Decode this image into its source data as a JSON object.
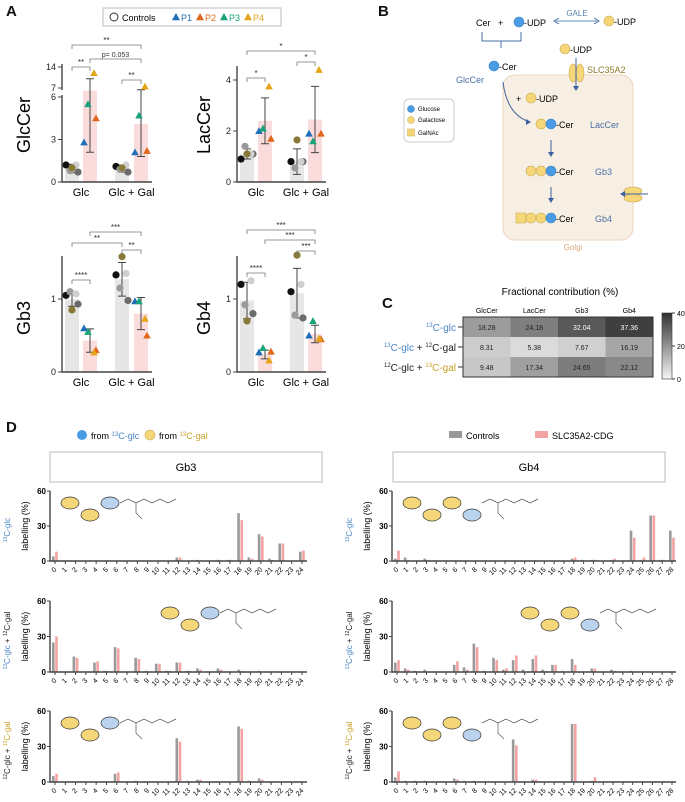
{
  "panels": {
    "a": "A",
    "b": "B",
    "c": "C",
    "d": "D"
  },
  "colors": {
    "control_bar": "#e6e6e6",
    "patient_bar": "#fbdcdc",
    "P1": "#1f6fb8",
    "P2": "#e0661c",
    "P3": "#17a37b",
    "P4": "#e6a519",
    "glucose": "#4a9be6",
    "galactose": "#f5d77a",
    "glc_text": "#4a86c5",
    "gal_text": "#c9a227",
    "ctrl_d": "#9a9a9a",
    "pat_d": "#f4a3a3"
  },
  "panel_a": {
    "legend": {
      "controls": "Controls",
      "patients": [
        "P1",
        "P2",
        "P3",
        "P4"
      ]
    },
    "groups": [
      "Glc",
      "Glc + Gal"
    ],
    "plots": [
      {
        "ylabel": "GlcCer",
        "ticks": [
          0,
          3,
          6,
          7,
          14
        ],
        "bars": [
          {
            "mean": 0.95,
            "sd": 0.3,
            "points": [
              1.2,
              0.7,
              0.8,
              1.2,
              1.0
            ]
          },
          {
            "mean": 6.1,
            "sd": 4.0,
            "points": [
              2.8,
              4.5,
              5.5,
              12.0
            ]
          },
          {
            "mean": 0.95,
            "sd": 0.25,
            "points": [
              1.1,
              0.7,
              0.9,
              1.2,
              1.0
            ]
          },
          {
            "mean": 4.1,
            "sd": 2.3,
            "points": [
              2.1,
              2.2,
              4.7,
              7.5
            ]
          }
        ],
        "sig": [
          {
            "label": "**",
            "from": 0,
            "to": 3
          },
          {
            "label": "p= 0.053",
            "from": 1,
            "to": 3
          },
          {
            "label": "**",
            "from": 0,
            "to": 1
          },
          {
            "label": "**",
            "from": 2,
            "to": 3
          }
        ]
      },
      {
        "ylabel": "LacCer",
        "ticks": [
          0,
          2,
          4
        ],
        "bars": [
          {
            "mean": 1.1,
            "sd": 0.2,
            "points": [
              0.9,
              1.1,
              1.4,
              1.1,
              1.1
            ]
          },
          {
            "mean": 2.4,
            "sd": 0.9,
            "points": [
              2.0,
              1.7,
              2.1,
              3.75
            ]
          },
          {
            "mean": 0.8,
            "sd": 0.5,
            "points": [
              0.8,
              0.8,
              0.55,
              0.8,
              1.65
            ]
          },
          {
            "mean": 2.45,
            "sd": 1.3,
            "points": [
              1.9,
              1.9,
              1.6,
              4.4
            ]
          }
        ],
        "sig": [
          {
            "label": "*",
            "from": 0,
            "to": 3
          },
          {
            "label": "*",
            "from": 2,
            "to": 3
          },
          {
            "label": "*",
            "from": 0,
            "to": 1
          }
        ]
      },
      {
        "ylabel": "Gb3",
        "ticks": [
          0,
          1
        ],
        "bars": [
          {
            "mean": 1.0,
            "sd": 0.1,
            "points": [
              1.05,
              0.93,
              1.1,
              1.07,
              0.85
            ]
          },
          {
            "mean": 0.43,
            "sd": 0.16,
            "points": [
              0.6,
              0.3,
              0.55,
              0.27
            ]
          },
          {
            "mean": 1.27,
            "sd": 0.23,
            "points": [
              1.33,
              0.98,
              1.15,
              1.35,
              1.58
            ]
          },
          {
            "mean": 0.8,
            "sd": 0.22,
            "points": [
              0.97,
              0.5,
              0.97,
              0.73
            ]
          }
        ],
        "sig": [
          {
            "label": "***",
            "from": 1,
            "to": 3
          },
          {
            "label": "**",
            "from": 0,
            "to": 2
          },
          {
            "label": "**",
            "from": 2,
            "to": 3
          },
          {
            "label": "****",
            "from": 0,
            "to": 1
          }
        ]
      },
      {
        "ylabel": "Gb4",
        "ticks": [
          0,
          1
        ],
        "bars": [
          {
            "mean": 0.98,
            "sd": 0.25,
            "points": [
              1.2,
              0.8,
              0.92,
              1.25,
              0.7
            ]
          },
          {
            "mean": 0.24,
            "sd": 0.06,
            "points": [
              0.27,
              0.28,
              0.33,
              0.16
            ]
          },
          {
            "mean": 1.08,
            "sd": 0.34,
            "points": [
              1.1,
              0.74,
              0.78,
              1.2,
              1.6
            ]
          },
          {
            "mean": 0.52,
            "sd": 0.12,
            "points": [
              0.5,
              0.45,
              0.7,
              0.46
            ]
          }
        ],
        "sig": [
          {
            "label": "***",
            "from": 0,
            "to": 3
          },
          {
            "label": "***",
            "from": 1,
            "to": 3
          },
          {
            "label": "***",
            "from": 2,
            "to": 3
          },
          {
            "label": "****",
            "from": 0,
            "to": 1
          }
        ]
      }
    ]
  },
  "panel_b": {
    "cer": "Cer",
    "plus": "+",
    "udp": "-UDP",
    "gale": "GALE",
    "glccer_cer": "-Cer",
    "glccer": "GlcCer",
    "slc35a2": "SLC35A2",
    "laccer": "LacCer",
    "gb3": "Gb3",
    "gb4": "Gb4",
    "golgi": "Golgi",
    "legend": [
      "Glucose",
      "Galactose",
      "GalNAc"
    ]
  },
  "chart_data": [
    {
      "type": "heatmap",
      "title": "Fractional contribution (%)",
      "columns": [
        "GlcCer",
        "LacCer",
        "Gb3",
        "Gb4"
      ],
      "rows": [
        [
          {
            "sup": "13",
            "text": "C-glc",
            "c": "glc"
          }
        ],
        [
          {
            "sup": "13",
            "text": "C-glc",
            "c": "glc"
          },
          {
            "sup": "",
            "text": " + ",
            "c": ""
          },
          {
            "sup": "12",
            "text": "C-gal",
            "c": ""
          }
        ],
        [
          {
            "sup": "12",
            "text": "C-glc + ",
            "c": ""
          },
          {
            "sup": "13",
            "text": "C-gal",
            "c": "gal"
          }
        ]
      ],
      "values": [
        [
          "18.28",
          "24.18",
          "32.04",
          "37.36"
        ],
        [
          "8.31",
          "5.38",
          "7.67",
          "16.19"
        ],
        [
          "9.48",
          "17.34",
          "24.65",
          "22.12"
        ]
      ],
      "colorbar": {
        "range": [
          0,
          40
        ],
        "ticks": [
          "40",
          "20",
          "0"
        ]
      }
    },
    {
      "type": "bar",
      "legend": {
        "from_glc": "from ",
        "from_glc_iso": "13",
        "from_glc_text": "C-glc",
        "from_gal": "from ",
        "from_gal_iso": "13",
        "from_gal_text": "C-gal",
        "controls": "Controls",
        "patients": "SLC35A2-CDG"
      },
      "ylabel": "labelling (%)",
      "ylim": [
        0,
        60
      ],
      "yticks": [
        "0",
        "30",
        "60"
      ],
      "panels": [
        {
          "title": "Gb3",
          "n": 25,
          "rows": [
            {
              "controls": [
                4,
                0,
                0,
                0,
                0,
                0,
                0,
                0,
                0,
                0,
                0,
                0,
                3,
                0,
                1,
                0,
                1,
                1,
                41,
                3,
                23,
                2,
                15,
                0,
                8
              ],
              "patients": [
                8,
                0,
                0,
                0,
                0,
                0,
                0,
                0,
                0,
                0,
                0,
                0,
                3,
                0,
                0.5,
                0,
                0,
                1,
                35,
                2,
                21,
                1,
                15,
                0,
                9
              ]
            },
            {
              "controls": [
                25,
                0,
                13,
                0,
                8,
                1,
                21,
                0,
                12,
                1,
                7,
                1,
                8,
                1,
                3,
                0,
                3,
                0,
                2,
                0,
                1,
                0,
                0,
                0,
                0
              ],
              "patients": [
                30,
                0,
                12,
                0,
                9,
                1,
                20,
                0,
                11,
                0,
                7,
                1,
                8,
                1,
                2,
                0,
                2,
                0,
                1,
                0,
                0,
                0,
                0,
                0,
                0
              ]
            },
            {
              "controls": [
                5,
                0,
                0,
                0,
                0,
                0,
                7,
                0,
                1,
                0,
                0,
                0,
                37,
                1,
                2,
                0,
                0,
                0,
                47,
                1,
                3,
                0,
                0,
                0,
                0
              ],
              "patients": [
                7,
                0,
                0,
                0,
                0,
                0,
                8,
                0,
                0,
                0,
                0,
                0,
                34,
                0,
                2,
                0,
                0,
                0,
                45,
                0,
                2,
                0,
                0,
                0,
                0
              ]
            }
          ]
        },
        {
          "title": "Gb4",
          "n": 29,
          "rows": [
            {
              "controls": [
                2,
                3,
                0,
                2,
                0,
                0,
                0,
                0,
                0,
                0,
                0,
                0,
                0,
                0,
                0,
                0,
                0,
                0,
                2,
                1,
                1,
                0,
                1,
                0,
                26,
                1,
                39,
                1,
                26
              ],
              "patients": [
                9,
                1,
                0,
                1,
                0,
                0,
                0,
                0,
                0,
                0,
                0,
                0,
                0,
                0,
                0,
                0,
                0,
                0,
                3,
                0,
                1,
                0,
                2,
                0,
                20,
                3,
                39,
                1,
                20
              ]
            },
            {
              "controls": [
                8,
                3,
                1,
                2,
                0,
                0,
                6,
                4,
                24,
                1,
                12,
                2,
                10,
                2,
                11,
                2,
                6,
                1,
                11,
                0,
                3,
                0,
                2,
                0,
                1,
                0,
                0,
                0,
                0
              ],
              "patients": [
                10,
                2,
                0,
                0,
                0,
                0,
                9,
                2,
                21,
                0,
                10,
                3,
                14,
                0,
                14,
                1,
                6,
                0,
                6,
                0,
                3,
                0,
                1,
                0,
                0,
                0,
                0,
                0,
                0
              ]
            },
            {
              "controls": [
                4,
                1,
                1,
                1,
                0,
                0,
                3,
                1,
                1,
                0,
                0,
                0,
                36,
                0,
                2,
                0,
                0,
                0,
                49,
                0,
                1,
                0,
                0,
                0,
                0,
                0,
                0,
                0,
                0
              ],
              "patients": [
                9,
                0,
                0,
                0,
                0,
                0,
                2,
                0,
                0,
                0,
                0,
                0,
                31,
                0,
                2,
                0,
                0,
                0,
                49,
                0,
                4,
                0,
                0,
                0,
                0,
                0,
                0,
                0,
                0
              ]
            }
          ]
        }
      ]
    }
  ]
}
